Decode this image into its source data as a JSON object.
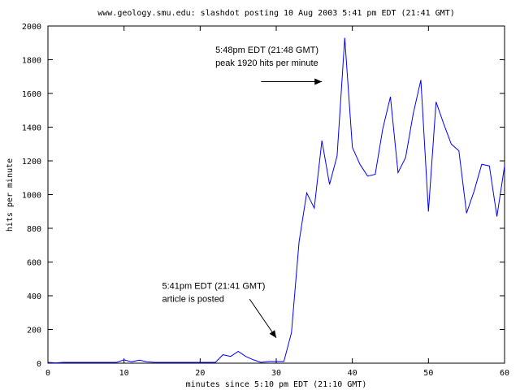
{
  "chart_data": {
    "type": "line",
    "title": "www.geology.smu.edu: slashdot posting 10 Aug 2003 5:41 pm EDT (21:41 GMT)",
    "xlabel": "minutes since 5:10 pm EDT (21:10 GMT)",
    "ylabel": "hits per minute",
    "xlim": [
      0,
      60
    ],
    "ylim": [
      0,
      2000
    ],
    "xticks": [
      0,
      10,
      20,
      30,
      40,
      50,
      60
    ],
    "yticks": [
      0,
      200,
      400,
      600,
      800,
      1000,
      1200,
      1400,
      1600,
      1800,
      2000
    ],
    "grid": false,
    "legend": "none",
    "line_color": "#0000ff",
    "series": [
      {
        "x": [
          0,
          1,
          2,
          3,
          4,
          5,
          6,
          7,
          8,
          9,
          10,
          11,
          12,
          13,
          14,
          15,
          16,
          17,
          18,
          19,
          20,
          21,
          22,
          23,
          24,
          25,
          26,
          27,
          28,
          29,
          30,
          31,
          32,
          33,
          34,
          35,
          36,
          37,
          38,
          39,
          40,
          41,
          42,
          43,
          44,
          45,
          46,
          47,
          48,
          49,
          50,
          51,
          52,
          53,
          54,
          55,
          56,
          57,
          58,
          59,
          60
        ],
        "y": [
          5,
          2,
          5,
          5,
          5,
          5,
          5,
          5,
          5,
          5,
          20,
          8,
          18,
          8,
          5,
          5,
          5,
          5,
          5,
          5,
          5,
          5,
          5,
          50,
          40,
          70,
          40,
          20,
          5,
          10,
          10,
          10,
          180,
          720,
          1010,
          920,
          1320,
          1060,
          1230,
          1930,
          1280,
          1180,
          1110,
          1120,
          1390,
          1580,
          1130,
          1220,
          1480,
          1680,
          900,
          1550,
          1420,
          1300,
          1260,
          890,
          1020,
          1180,
          1170,
          870,
          1170
        ]
      }
    ],
    "annotations": [
      {
        "lines": [
          "5:48pm EDT (21:48 GMT)",
          "peak 1920 hits per minute"
        ],
        "text_at": [
          22,
          1840
        ],
        "arrow_from": [
          28,
          1670
        ],
        "arrow_to": [
          36,
          1670
        ]
      },
      {
        "lines": [
          "5:41pm EDT (21:41 GMT)",
          "article is posted"
        ],
        "text_at": [
          15,
          440
        ],
        "arrow_from": [
          26.5,
          380
        ],
        "arrow_to": [
          30,
          150
        ]
      }
    ]
  }
}
